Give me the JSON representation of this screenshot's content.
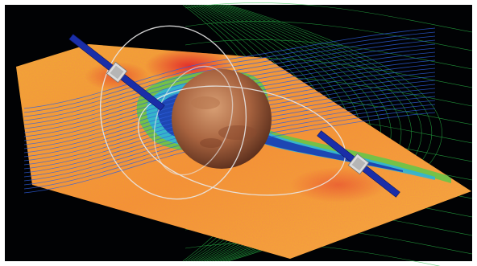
{
  "colors": {
    "frame": "#ffffff",
    "space": "#010204",
    "plane_warm": "#f2a82a",
    "plane_hot": "#e8332a",
    "plane_cool_green": "#5ec84a",
    "plane_cool_cyan": "#2fb4d8",
    "plane_cavity_blue": "#1b3bb0",
    "mesh_green": "#2bbf4a",
    "field_lines_blue": "#2f5fe0",
    "orbit_white": "#e8e8e8",
    "planet_base": "#a8633f",
    "planet_light": "#d49a6e",
    "solar_panel": "#1a2ea8",
    "spacecraft_body": "#dcdcdc"
  },
  "scene": {
    "subject": "mars",
    "elements": [
      "magnetosphere-mesh",
      "simulation-plane",
      "field-lines",
      "orbit-paths",
      "spacecraft-left",
      "spacecraft-right"
    ]
  }
}
